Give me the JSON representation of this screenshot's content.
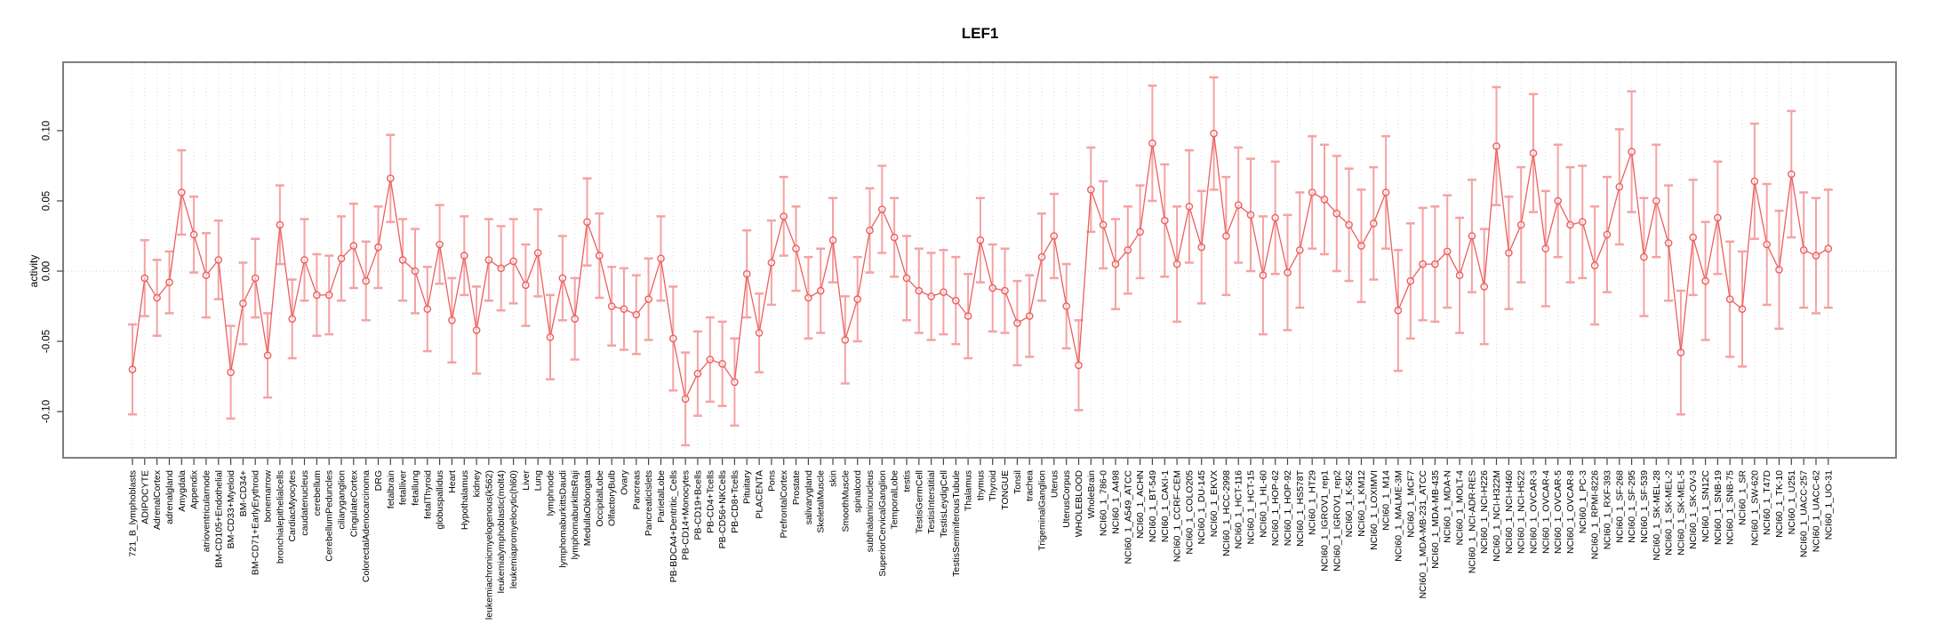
{
  "figure": {
    "title": "LEF1",
    "ylabel": "activity"
  },
  "chart_data": {
    "type": "line",
    "title": "LEF1",
    "xlabel": "",
    "ylabel": "activity",
    "legend": "none",
    "marker": "open-circle",
    "error_bars": true,
    "grid": "vertical dotted gridline per category plus dotted zero line",
    "ylim": [
      -0.133,
      0.149
    ],
    "yticks": [
      -0.1,
      -0.05,
      0.0,
      0.05,
      0.1
    ],
    "ytick_labels": [
      "-0.10",
      "-0.05",
      "0.00",
      "0.05",
      "0.10"
    ],
    "colors": {
      "line": "#ec5f5f",
      "point": "#ec5f5f",
      "error_bar": "#f5a2a2",
      "grid": "#dcdcdc",
      "zero_line": "#cfcfcf",
      "frame": "#7d7d7d",
      "text": "#000000"
    },
    "categories": [
      "721_B_lymphoblasts",
      "ADIPOCYTE",
      "AdrenalCortex",
      "adrenalgland",
      "Amygdala",
      "Appendix",
      "atrioventricularnode",
      "BM-CD105+Endothelial",
      "BM-CD33+Myeloid",
      "BM-CD34+",
      "BM-CD71+EarlyErythroid",
      "bonemarrow",
      "bronchialepithelialcells",
      "CardiacMyocytes",
      "caudatenucleus",
      "cerebellum",
      "CerebellumPeduncles",
      "ciliaryganglion",
      "CingulateCortex",
      "ColorectalAdenocarcinoma",
      "DRG",
      "fetalbrain",
      "fetalliver",
      "fetallung",
      "fetalThyroid",
      "globuspallidus",
      "Heart",
      "Hypothalamus",
      "kidney",
      "leukemiachronicmyelogenous(k562)",
      "leukemialymphoblastic(molt4)",
      "leukemiapromyelocytic(hl60)",
      "Liver",
      "Lung",
      "lymphnode",
      "lymphomaburkittsDaudi",
      "lymphomaburkittsRaji",
      "MedullaOblongata",
      "OccipitalLobe",
      "OlfactoryBulb",
      "Ovary",
      "Pancreas",
      "PancreaticIslets",
      "ParietalLobe",
      "PB-BDCA4+Dentritic_Cells",
      "PB-CD14+Monocytes",
      "PB-CD19+Bcells",
      "PB-CD4+Tcells",
      "PB-CD56+NKCells",
      "PB-CD8+Tcells",
      "Pituitary",
      "PLACENTA",
      "Pons",
      "PrefrontalCortex",
      "Prostate",
      "salivarygland",
      "SkeletalMuscle",
      "skin",
      "SmoothMuscle",
      "spinalcord",
      "subthalamicnucleus",
      "SuperiorCervicalGanglion",
      "TemporalLobe",
      "testis",
      "TestisGermCell",
      "TestisInterstitial",
      "TestisLeydigCell",
      "TestisSeminiferousTubule",
      "Thalamus",
      "thymus",
      "Thyroid",
      "TONGUE",
      "Tonsil",
      "trachea",
      "TrigeminalGanglion",
      "Uterus",
      "UterusCorpus",
      "WHOLEBLOOD",
      "WholeBrain",
      "NCI60_1_786-0",
      "NCI60_1_A498",
      "NCI60_1_A549_ATCC",
      "NCI60_1_ACHN",
      "NCI60_1_BT-549",
      "NCI60_1_CAKI-1",
      "NCI60_1_CCRF-CEM",
      "NCI60_1_COLO205",
      "NCI60_1_DU-145",
      "NCI60_1_EKVX",
      "NCI60_1_HCC-2998",
      "NCI60_1_HCT-116",
      "NCI60_1_HCT-15",
      "NCI60_1_HL-60",
      "NCI60_1_HOP-62",
      "NCI60_1_HOP-92",
      "NCI60_1_HS578T",
      "NCI60_1_HT29",
      "NCI60_1_IGROV1_rep1",
      "NCI60_1_IGROV1_rep2",
      "NCI60_1_K-562",
      "NCI60_1_KM12",
      "NCI60_1_LOXIMVI",
      "NCI60_1_M14",
      "NCI60_1_MALME-3M",
      "NCI60_1_MCF7",
      "NCI60_1_MDA-MB-231_ATCC",
      "NCI60_1_MDA-MB-435",
      "NCI60_1_MDA-N",
      "NCI60_1_MOLT-4",
      "NCI60_1_NCI-ADR-RES",
      "NCI60_1_NCI-H226",
      "NCI60_1_NCI-H322M",
      "NCI60_1_NCI-H460",
      "NCI60_1_NCI-H522",
      "NCI60_1_OVCAR-3",
      "NCI60_1_OVCAR-4",
      "NCI60_1_OVCAR-5",
      "NCI60_1_OVCAR-8",
      "NCI60_1_PC-3",
      "NCI60_1_RPMI-8226",
      "NCI60_1_RXF-393",
      "NCI60_1_SF-268",
      "NCI60_1_SF-295",
      "NCI60_1_SF-539",
      "NCI60_1_SK-MEL-28",
      "NCI60_1_SK-MEL-2",
      "NCI60_1_SK-MEL-5",
      "NCI60_1_SK-OV-3",
      "NCI60_1_SN12C",
      "NCI60_1_SNB-19",
      "NCI60_1_SNB-75",
      "NCI60_1_SR",
      "NCI60_1_SW-620",
      "NCI60_1_T47D",
      "NCI60_1_TK-10",
      "NCI60_1_U251",
      "NCI60_1_UACC-257",
      "NCI60_1_UACC-62",
      "NCI60_1_UO-31"
    ],
    "series": [
      {
        "name": "activity",
        "values": [
          -0.07,
          -0.005,
          -0.019,
          -0.008,
          0.056,
          0.026,
          -0.003,
          0.008,
          -0.072,
          -0.023,
          -0.005,
          -0.06,
          0.033,
          -0.034,
          0.008,
          -0.017,
          -0.017,
          0.009,
          0.018,
          -0.007,
          0.017,
          0.066,
          0.008,
          0.0,
          -0.027,
          0.019,
          -0.035,
          0.011,
          -0.042,
          0.008,
          0.002,
          0.007,
          -0.01,
          0.013,
          -0.047,
          -0.005,
          -0.034,
          0.035,
          0.011,
          -0.025,
          -0.027,
          -0.031,
          -0.02,
          0.009,
          -0.048,
          -0.091,
          -0.073,
          -0.063,
          -0.066,
          -0.079,
          -0.002,
          -0.044,
          0.006,
          0.039,
          0.016,
          -0.019,
          -0.014,
          0.022,
          -0.049,
          -0.02,
          0.029,
          0.044,
          0.024,
          -0.005,
          -0.014,
          -0.018,
          -0.015,
          -0.021,
          -0.032,
          0.022,
          -0.012,
          -0.014,
          -0.037,
          -0.032,
          0.01,
          0.025,
          -0.025,
          -0.067,
          0.058,
          0.033,
          0.005,
          0.015,
          0.028,
          0.091,
          0.036,
          0.005,
          0.046,
          0.017,
          0.098,
          0.025,
          0.047,
          0.04,
          -0.003,
          0.038,
          -0.001,
          0.015,
          0.056,
          0.051,
          0.041,
          0.033,
          0.018,
          0.034,
          0.056,
          -0.028,
          -0.007,
          0.005,
          0.005,
          0.014,
          -0.003,
          0.025,
          -0.011,
          0.089,
          0.013,
          0.033,
          0.084,
          0.016,
          0.05,
          0.033,
          0.035,
          0.004,
          0.026,
          0.06,
          0.085,
          0.01,
          0.05,
          0.02,
          -0.058,
          0.024,
          -0.007,
          0.038,
          -0.02,
          -0.027,
          0.064,
          0.019,
          0.001,
          0.069,
          0.015,
          0.011,
          0.016
        ],
        "se": [
          0.032,
          0.027,
          0.027,
          0.022,
          0.03,
          0.027,
          0.03,
          0.028,
          0.033,
          0.029,
          0.028,
          0.03,
          0.028,
          0.028,
          0.029,
          0.029,
          0.028,
          0.03,
          0.03,
          0.028,
          0.029,
          0.031,
          0.029,
          0.03,
          0.03,
          0.028,
          0.03,
          0.028,
          0.031,
          0.029,
          0.03,
          0.03,
          0.029,
          0.031,
          0.03,
          0.03,
          0.029,
          0.031,
          0.03,
          0.028,
          0.029,
          0.028,
          0.029,
          0.03,
          0.037,
          0.033,
          0.03,
          0.03,
          0.03,
          0.031,
          0.031,
          0.028,
          0.03,
          0.028,
          0.03,
          0.029,
          0.03,
          0.03,
          0.031,
          0.03,
          0.03,
          0.031,
          0.028,
          0.03,
          0.03,
          0.031,
          0.03,
          0.031,
          0.03,
          0.03,
          0.031,
          0.03,
          0.03,
          0.029,
          0.031,
          0.03,
          0.03,
          0.032,
          0.03,
          0.031,
          0.032,
          0.031,
          0.033,
          0.041,
          0.04,
          0.041,
          0.04,
          0.04,
          0.04,
          0.042,
          0.041,
          0.04,
          0.042,
          0.04,
          0.041,
          0.041,
          0.04,
          0.039,
          0.041,
          0.04,
          0.04,
          0.04,
          0.04,
          0.043,
          0.041,
          0.04,
          0.041,
          0.04,
          0.041,
          0.04,
          0.041,
          0.042,
          0.04,
          0.041,
          0.042,
          0.041,
          0.04,
          0.041,
          0.04,
          0.042,
          0.041,
          0.041,
          0.043,
          0.042,
          0.04,
          0.041,
          0.044,
          0.041,
          0.042,
          0.04,
          0.041,
          0.041,
          0.041,
          0.043,
          0.042,
          0.045,
          0.041,
          0.041,
          0.042
        ]
      }
    ]
  }
}
